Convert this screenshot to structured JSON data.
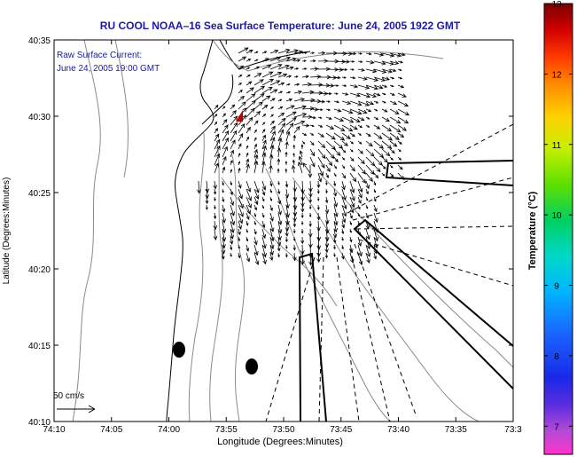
{
  "chart_data": {
    "type": "map",
    "title": "RU COOL  NOAA–16  Sea Surface Temperature:  June 24, 2005 1922 GMT",
    "xlabel": "Longitude (Degrees:Minutes)",
    "ylabel": "Latitude (Degrees:Minutes)",
    "x_ticks": [
      "74:10",
      "74:05",
      "74:00",
      "73:55",
      "73:50",
      "73:45",
      "73:40",
      "73:35",
      "73:3"
    ],
    "y_ticks": [
      "40:10",
      "40:15",
      "40:20",
      "40:25",
      "40:30",
      "40:35"
    ],
    "xlim_minutes_west": [
      10,
      30
    ],
    "ylim_minutes_north": [
      10,
      35
    ],
    "annotation_lines": [
      "Raw Surface Current:",
      "June 24, 2005 19:00 GMT"
    ],
    "scale_label": "50 cm/s",
    "colorbar": {
      "label": "Temperature (°C)",
      "ticks": [
        "7",
        "8",
        "9",
        "10",
        "11",
        "12",
        "13"
      ],
      "range": [
        6.6,
        13
      ]
    },
    "colors": {
      "title": "#1a1aa8",
      "annotation": "#1a1aa8",
      "coast": "#000000",
      "bathymetry": "#888888",
      "vectors": "#000000"
    }
  }
}
